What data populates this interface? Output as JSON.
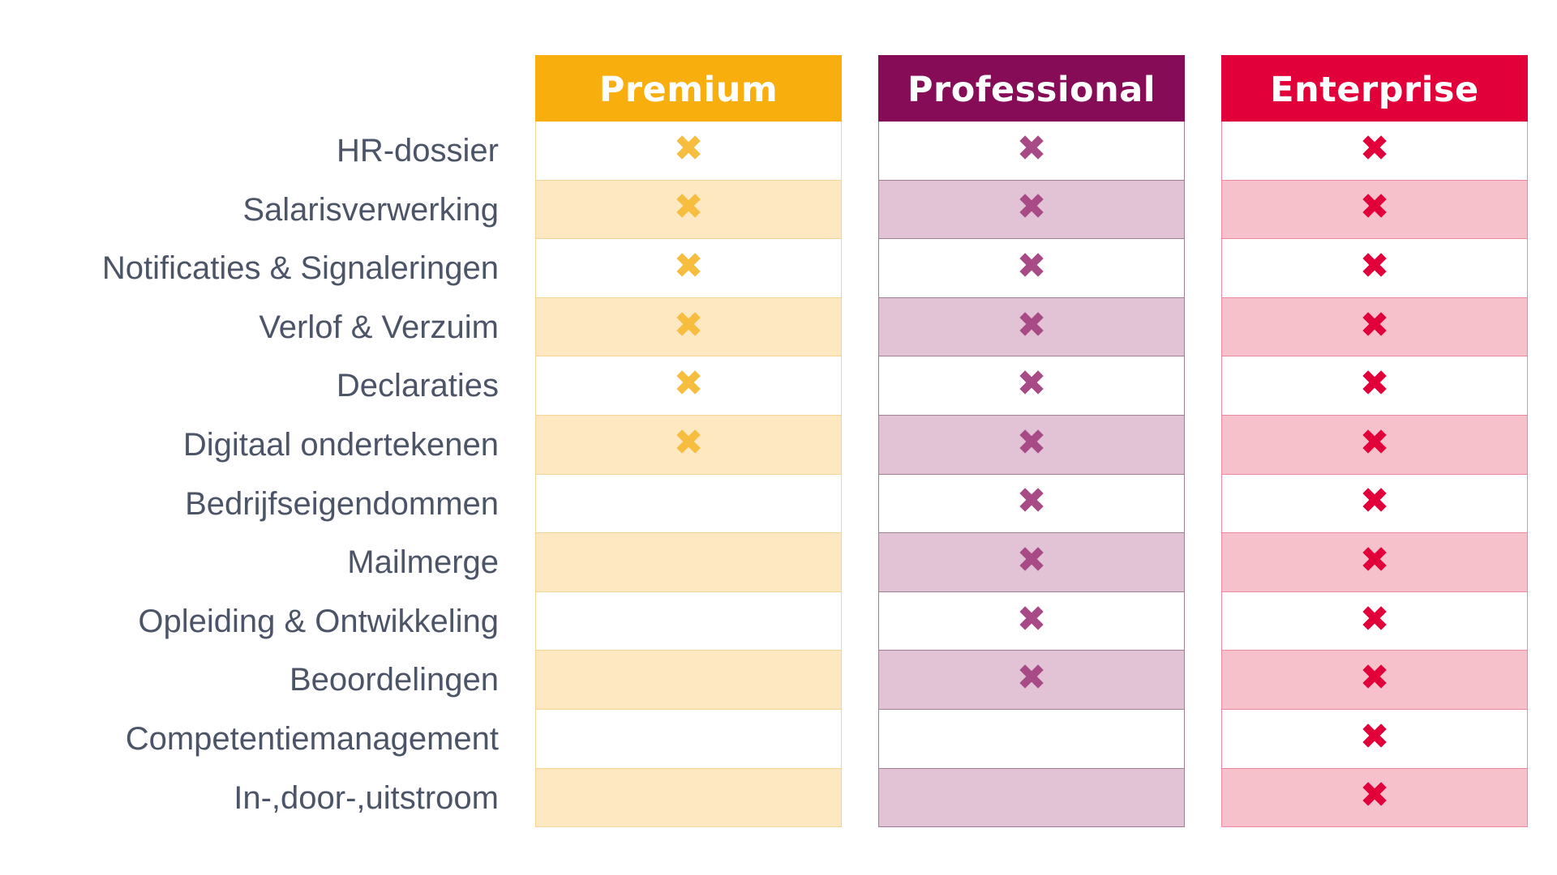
{
  "features": [
    "HR-dossier",
    "Salarisverwerking",
    "Notificaties & Signaleringen",
    "Verlof & Verzuim",
    "Declaraties",
    "Digitaal ondertekenen",
    "Bedrijfseigendommen",
    "Mailmerge",
    "Opleiding & Ontwikkeling",
    "Beoordelingen",
    "Competentiemanagement",
    "In-,door-,uitstroom"
  ],
  "mark_glyph": "✖",
  "plans": [
    {
      "name": "Premium",
      "header_color": "#f8ae0d",
      "alt_row_color": "#fde8c1",
      "border_color": "#f5d596",
      "mark_color": "#f6bd3e",
      "included": [
        true,
        true,
        true,
        true,
        true,
        true,
        false,
        false,
        false,
        false,
        false,
        false
      ]
    },
    {
      "name": "Professional",
      "header_color": "#870c57",
      "alt_row_color": "#e1c3d5",
      "border_color": "#a07f94",
      "mark_color": "#a84a86",
      "included": [
        true,
        true,
        true,
        true,
        true,
        true,
        true,
        true,
        true,
        true,
        false,
        false
      ]
    },
    {
      "name": "Enterprise",
      "header_color": "#e2003b",
      "alt_row_color": "#f6c1cb",
      "border_color": "#e98aa0",
      "mark_color": "#e2003b",
      "included": [
        true,
        true,
        true,
        true,
        true,
        true,
        true,
        true,
        true,
        true,
        true,
        true
      ]
    }
  ]
}
